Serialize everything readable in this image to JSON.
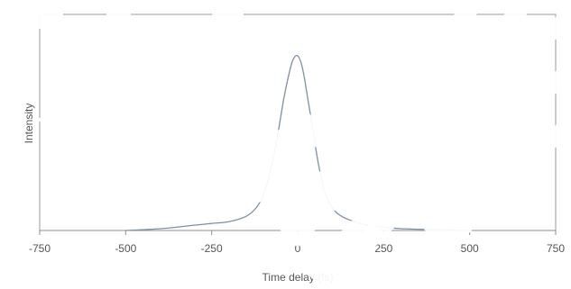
{
  "chart_data": {
    "type": "line",
    "title": "",
    "xlabel": "Time delay (fs)",
    "ylabel": "Intensity",
    "xlim": [
      -750,
      750
    ],
    "ylim": [
      0,
      1
    ],
    "x_ticks": [
      -750,
      -500,
      -250,
      0,
      250,
      500,
      750
    ],
    "x_tick_labels": [
      "-750",
      "-500",
      "-250",
      "0",
      "250",
      "500",
      "750"
    ],
    "y_ticks": [],
    "grid": false,
    "legend": "none",
    "series": [
      {
        "color": "#7f8fa6",
        "x": [
          -500,
          -400,
          -300,
          -250,
          -200,
          -150,
          -120,
          -100,
          -80,
          -60,
          -40,
          -20,
          -10,
          0,
          10,
          20,
          40,
          60,
          80,
          100,
          120,
          150,
          200,
          250,
          300,
          400,
          500
        ],
        "y": [
          0.0,
          0.01,
          0.03,
          0.04,
          0.05,
          0.08,
          0.13,
          0.2,
          0.33,
          0.52,
          0.75,
          0.93,
          0.98,
          0.99,
          0.95,
          0.86,
          0.62,
          0.38,
          0.21,
          0.13,
          0.09,
          0.06,
          0.03,
          0.02,
          0.01,
          0.005,
          0.0
        ]
      }
    ]
  }
}
